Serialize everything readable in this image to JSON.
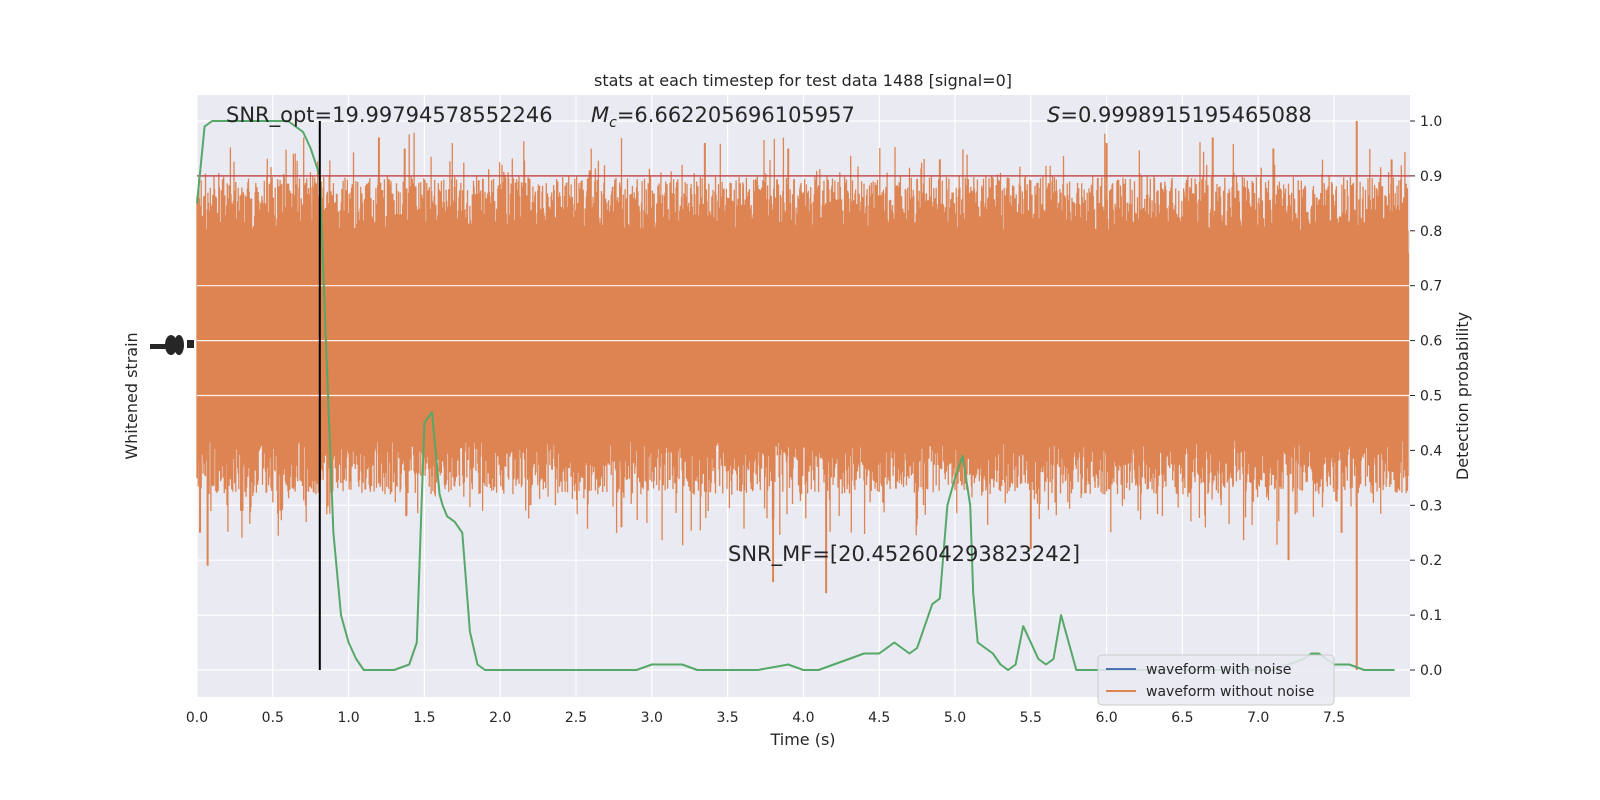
{
  "chart_data": {
    "type": "line",
    "title": "stats at each timestep for test data 1488 [signal=0]",
    "xlabel": "Time (s)",
    "ylabel_left": "Whitened strain",
    "ylabel_right": "Detection probability",
    "xlim": [
      0,
      8.0
    ],
    "ylim_right": [
      -0.05,
      1.05
    ],
    "x_ticks": [
      "0.0",
      "0.5",
      "1.0",
      "1.5",
      "2.0",
      "2.5",
      "3.0",
      "3.5",
      "4.0",
      "4.5",
      "5.0",
      "5.5",
      "6.0",
      "6.5",
      "7.0",
      "7.5"
    ],
    "right_ticks": [
      "0.0",
      "0.1",
      "0.2",
      "0.3",
      "0.4",
      "0.5",
      "0.6",
      "0.7",
      "0.8",
      "0.9",
      "1.0"
    ],
    "grid": true,
    "legend_position": "lower-right",
    "annotations": {
      "snr_opt": "SNR_opt=19.99794578552246",
      "mc_symbol": "M",
      "mc_subscript": "c",
      "mc_value": "=6.662205696105957",
      "s_symbol": "S",
      "s_value": "=0.9998915195465088",
      "snr_mf": "SNR_MF=[20.452604293823242]"
    },
    "threshold": 0.9,
    "marker_time": 0.81,
    "series": [
      {
        "name": "waveform with noise",
        "color": "#4c72b0",
        "values": []
      },
      {
        "name": "waveform without noise",
        "color": "#dd8452",
        "description_fill_band": "dense noise trace spanning roughly 0.25 to 0.95 on the right axis scale, with spikes up to 1.0 and down to 0.0",
        "spikes": [
          [
            0.02,
            0.25
          ],
          [
            0.07,
            0.19
          ],
          [
            0.2,
            0.3
          ],
          [
            0.3,
            0.29
          ],
          [
            0.55,
            0.29
          ],
          [
            0.75,
            0.85
          ],
          [
            1.2,
            0.97
          ],
          [
            1.2,
            0.34
          ],
          [
            1.37,
            0.95
          ],
          [
            1.38,
            0.28
          ],
          [
            1.6,
            0.47
          ],
          [
            1.7,
            0.88
          ],
          [
            2.2,
            0.3
          ],
          [
            2.8,
            0.26
          ],
          [
            3.35,
            0.96
          ],
          [
            3.8,
            0.16
          ],
          [
            3.9,
            0.95
          ],
          [
            4.15,
            0.14
          ],
          [
            4.9,
            0.93
          ],
          [
            5.5,
            0.22
          ],
          [
            6.0,
            0.96
          ],
          [
            6.7,
            0.97
          ],
          [
            7.1,
            0.95
          ],
          [
            7.2,
            0.2
          ],
          [
            7.55,
            0.25
          ],
          [
            7.65,
            1.0
          ],
          [
            7.65,
            0.0
          ],
          [
            7.88,
            0.93
          ]
        ]
      },
      {
        "name": "detection probability",
        "color": "#55a868",
        "x": [
          0.0,
          0.05,
          0.1,
          0.2,
          0.3,
          0.4,
          0.5,
          0.6,
          0.65,
          0.7,
          0.75,
          0.81,
          0.85,
          0.9,
          0.95,
          1.0,
          1.05,
          1.1,
          1.15,
          1.2,
          1.3,
          1.4,
          1.45,
          1.5,
          1.55,
          1.6,
          1.62,
          1.65,
          1.7,
          1.75,
          1.8,
          1.85,
          1.9,
          1.95,
          2.0,
          2.1,
          2.3,
          2.5,
          2.8,
          2.9,
          3.0,
          3.1,
          3.2,
          3.3,
          3.5,
          3.7,
          3.9,
          4.0,
          4.1,
          4.2,
          4.3,
          4.4,
          4.5,
          4.55,
          4.6,
          4.65,
          4.7,
          4.75,
          4.8,
          4.85,
          4.9,
          4.95,
          5.0,
          5.05,
          5.1,
          5.12,
          5.15,
          5.2,
          5.25,
          5.3,
          5.35,
          5.4,
          5.45,
          5.5,
          5.55,
          5.6,
          5.65,
          5.7,
          5.75,
          5.8,
          5.85,
          5.9,
          6.0,
          6.2,
          6.5,
          6.8,
          7.0,
          7.1,
          7.2,
          7.3,
          7.35,
          7.4,
          7.45,
          7.5,
          7.6,
          7.7,
          7.8,
          7.9
        ],
        "values": [
          0.85,
          0.99,
          1.0,
          1.0,
          1.0,
          1.0,
          1.0,
          1.0,
          0.99,
          0.98,
          0.95,
          0.9,
          0.6,
          0.25,
          0.1,
          0.05,
          0.02,
          0.0,
          0.0,
          0.0,
          0.0,
          0.01,
          0.05,
          0.45,
          0.47,
          0.32,
          0.3,
          0.28,
          0.27,
          0.25,
          0.07,
          0.01,
          0.0,
          0.0,
          0.0,
          0.0,
          0.0,
          0.0,
          0.0,
          0.0,
          0.01,
          0.01,
          0.01,
          0.0,
          0.0,
          0.0,
          0.01,
          0.0,
          0.0,
          0.01,
          0.02,
          0.03,
          0.03,
          0.04,
          0.05,
          0.04,
          0.03,
          0.04,
          0.08,
          0.12,
          0.13,
          0.3,
          0.35,
          0.39,
          0.3,
          0.14,
          0.05,
          0.04,
          0.03,
          0.01,
          0.0,
          0.01,
          0.08,
          0.05,
          0.02,
          0.01,
          0.02,
          0.1,
          0.05,
          0.0,
          0.0,
          0.0,
          0.0,
          0.0,
          0.0,
          0.0,
          0.0,
          0.0,
          0.01,
          0.02,
          0.03,
          0.03,
          0.02,
          0.01,
          0.01,
          0.0,
          0.0,
          0.0
        ]
      }
    ]
  }
}
